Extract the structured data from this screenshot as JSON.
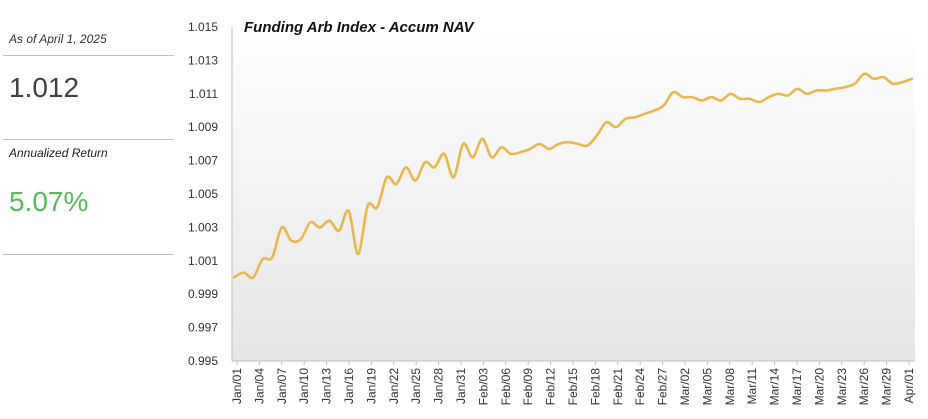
{
  "summary": {
    "as_of": "As of April 1, 2025",
    "nav_value": "1.012",
    "return_label": "Annualized Return",
    "return_value": "5.07%",
    "return_color": "#5cb85c"
  },
  "chart_data": {
    "type": "line",
    "title": "Funding Arb Index - Accum NAV",
    "xlabel": "",
    "ylabel": "",
    "ylim": [
      0.995,
      1.015
    ],
    "yticks": [
      "0.995",
      "0.997",
      "0.999",
      "1.001",
      "1.003",
      "1.005",
      "1.007",
      "1.009",
      "1.011",
      "1.013",
      "1.015"
    ],
    "xticks": [
      "Jan/01",
      "Jan/04",
      "Jan/07",
      "Jan/10",
      "Jan/13",
      "Jan/16",
      "Jan/19",
      "Jan/22",
      "Jan/25",
      "Jan/28",
      "Jan/31",
      "Feb/03",
      "Feb/06",
      "Feb/09",
      "Feb/12",
      "Feb/15",
      "Feb/18",
      "Feb/21",
      "Feb/24",
      "Feb/27",
      "Mar/02",
      "Mar/05",
      "Mar/08",
      "Mar/11",
      "Mar/14",
      "Mar/17",
      "Mar/20",
      "Mar/23",
      "Mar/26",
      "Mar/29",
      "Apr/01"
    ],
    "grid": false,
    "line_color": "#e8b84a",
    "series": [
      {
        "values": [
          1.0,
          1.0003,
          1.0,
          1.0011,
          1.0012,
          1.003,
          1.0022,
          1.0023,
          1.0033,
          1.003,
          1.0034,
          1.0028,
          1.004,
          1.0014,
          1.0043,
          1.0042,
          1.006,
          1.0056,
          1.0066,
          1.0058,
          1.0069,
          1.0066,
          1.0074,
          1.006,
          1.008,
          1.0072,
          1.0083,
          1.0072,
          1.0078,
          1.0074,
          1.0075,
          1.0077,
          1.008,
          1.0077,
          1.008,
          1.0081,
          1.008,
          1.0079,
          1.0085,
          1.0093,
          1.009,
          1.0095,
          1.0096,
          1.0098,
          1.01,
          1.0103,
          1.0111,
          1.0108,
          1.0108,
          1.0106,
          1.0108,
          1.0106,
          1.011,
          1.0107,
          1.0107,
          1.0105,
          1.0108,
          1.011,
          1.0109,
          1.0113,
          1.011,
          1.0112,
          1.0112,
          1.0113,
          1.0114,
          1.0116,
          1.0122,
          1.0119,
          1.012,
          1.0116,
          1.0117,
          1.0119
        ]
      }
    ]
  }
}
